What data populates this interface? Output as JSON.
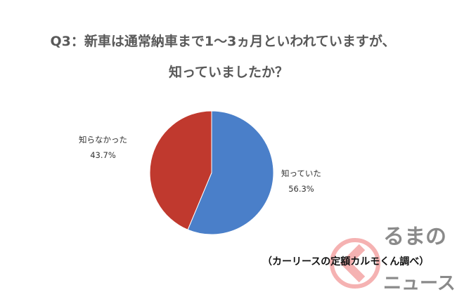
{
  "chart_data": {
    "type": "pie",
    "title_line1": "Q3：新車は通常納車まで1～3ヵ月といわれていますが、",
    "title_line2": "知っていましたか？",
    "slices": [
      {
        "label": "知っていた",
        "value": 56.3,
        "value_text": "56.3%",
        "color": "#4a7fc9"
      },
      {
        "label": "知らなかった",
        "value": 43.7,
        "value_text": "43.7%",
        "color": "#c0392e"
      }
    ],
    "start": "top",
    "direction": "clockwise"
  },
  "source": "（カーリースの定額カルモくん調べ）",
  "watermark": {
    "line1": "るまの",
    "line2": "ニュース",
    "color": "#f08080"
  }
}
